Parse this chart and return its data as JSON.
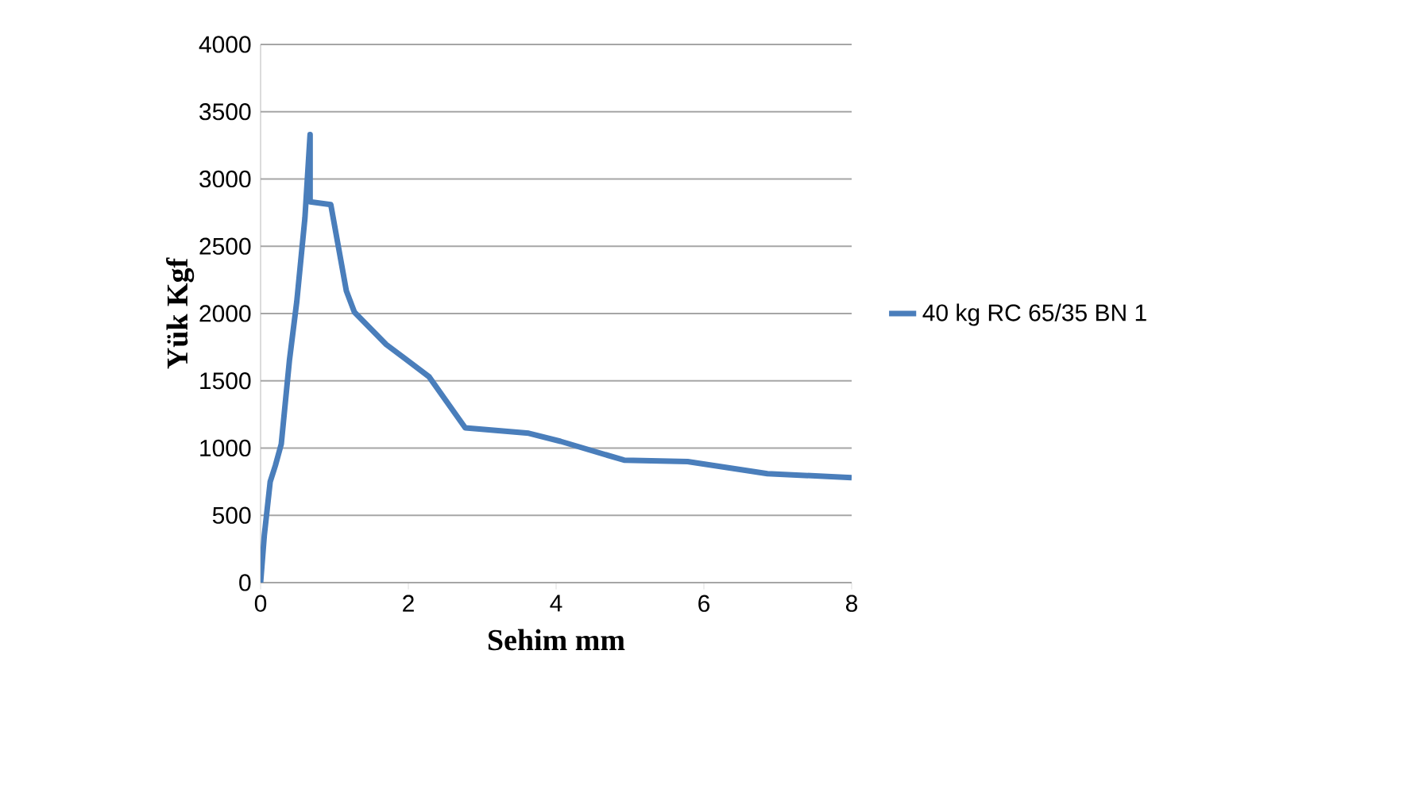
{
  "chart_data": {
    "type": "line",
    "xlabel": "Sehim mm",
    "ylabel": "Yük  Kgf",
    "xlim": [
      0,
      8
    ],
    "ylim": [
      0,
      4000
    ],
    "xticks": [
      0,
      2,
      4,
      6,
      8
    ],
    "yticks": [
      0,
      500,
      1000,
      1500,
      2000,
      2500,
      3000,
      3500,
      4000
    ],
    "grid": "y",
    "legend": "right",
    "marker": "none",
    "line_style": "solid",
    "series": [
      {
        "name": "40 kg RC 65/35 BN 1",
        "color": "#4a7ebb",
        "x": [
          0,
          0.05,
          0.13,
          0.2,
          0.28,
          0.39,
          0.49,
          0.6,
          0.67,
          0.67,
          0.95,
          1.16,
          1.27,
          1.7,
          2.28,
          2.77,
          3.63,
          4.06,
          4.92,
          5.78,
          6.86,
          8.0
        ],
        "values": [
          0,
          350,
          750,
          870,
          1030,
          1650,
          2090,
          2710,
          3330,
          2830,
          2810,
          2170,
          2010,
          1770,
          1530,
          1150,
          1110,
          1050,
          910,
          900,
          810,
          780
        ]
      }
    ]
  }
}
